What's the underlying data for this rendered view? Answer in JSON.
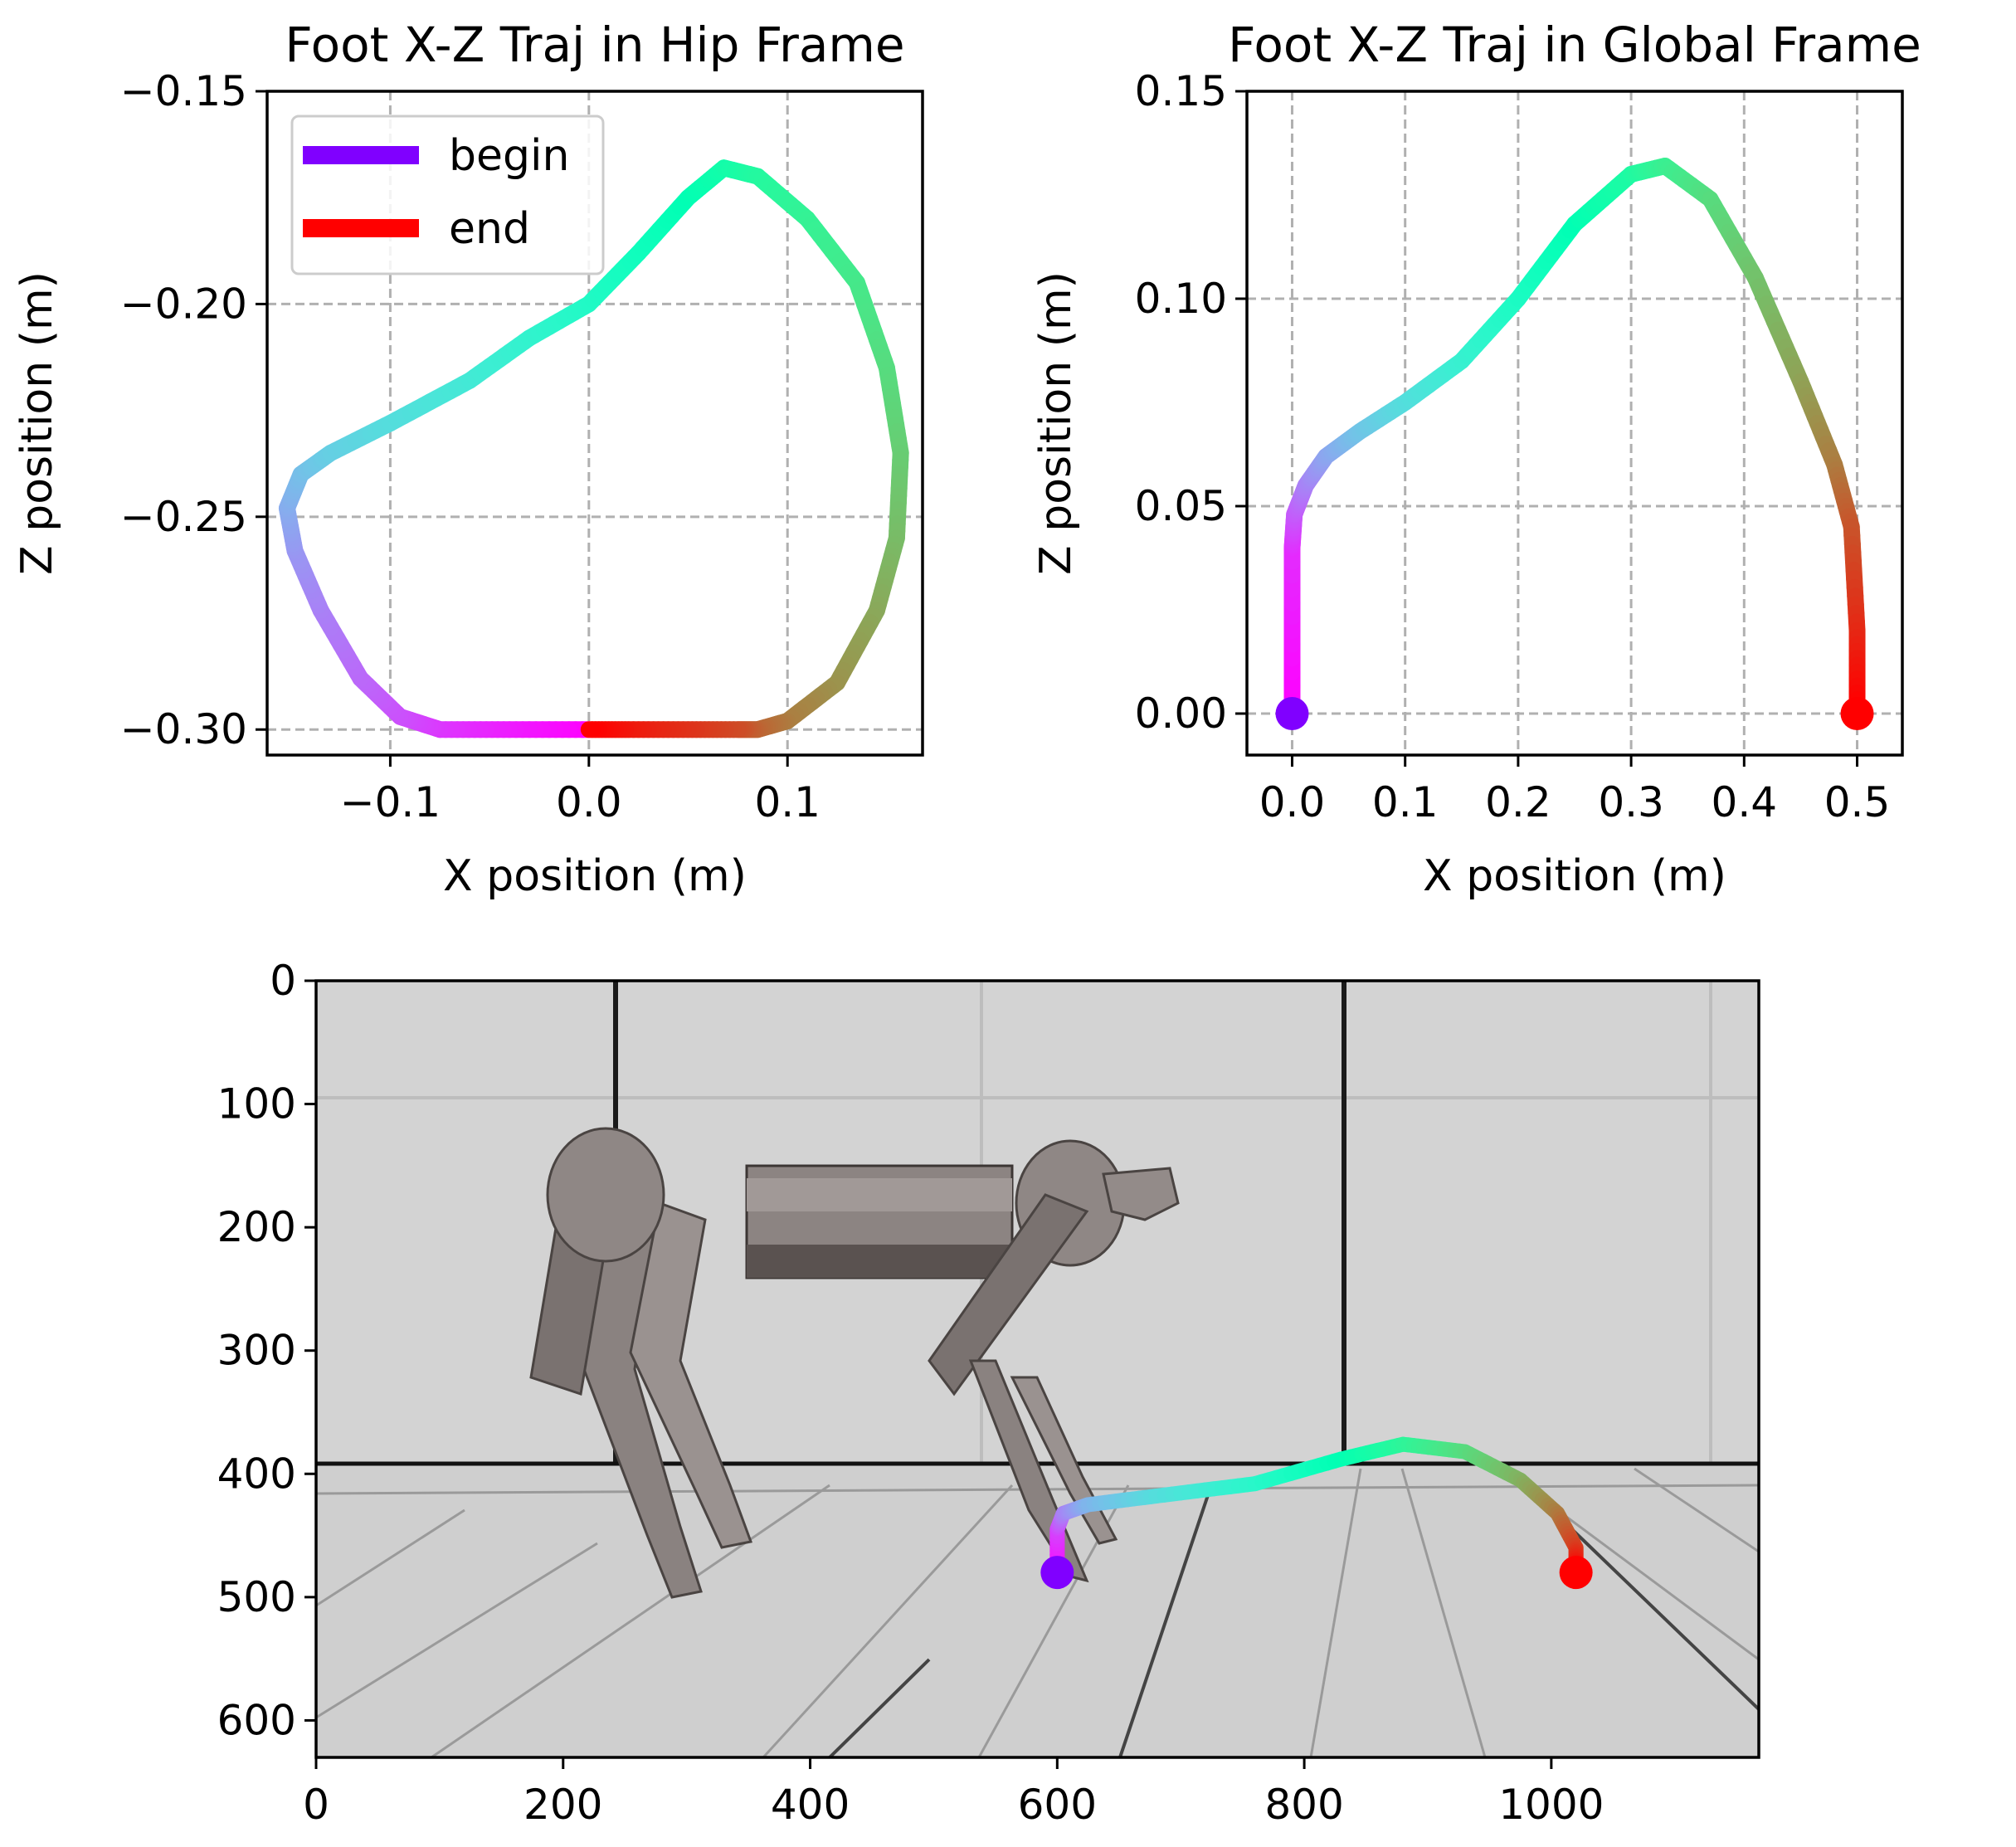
{
  "chart_data": [
    {
      "type": "line",
      "title": "Foot X-Z Traj in Hip Frame",
      "xlabel": "X position (m)",
      "ylabel": "Z position (m)",
      "xlim": [
        -0.162,
        0.168
      ],
      "ylim": [
        -0.306,
        -0.15
      ],
      "xticks": [
        -0.1,
        0.0,
        0.1
      ],
      "xtick_labels": [
        "−0.1",
        "0.0",
        "0.1"
      ],
      "yticks": [
        -0.15,
        -0.2,
        -0.25,
        -0.3
      ],
      "ytick_labels": [
        "−0.15",
        "−0.20",
        "−0.25",
        "−0.30"
      ],
      "grid": true,
      "colormap": "rainbow",
      "legend": {
        "location": "upper-left",
        "entries": [
          {
            "label": "begin",
            "color": "#8000ff"
          },
          {
            "label": "end",
            "color": "#ff0000"
          }
        ]
      },
      "series": [
        {
          "x": [
            0.0,
            -0.04,
            -0.075,
            -0.095,
            -0.115,
            -0.135,
            -0.148,
            -0.152,
            -0.145,
            -0.13,
            -0.1,
            -0.06,
            -0.03,
            0.0,
            0.025,
            0.05,
            0.068,
            0.085,
            0.11,
            0.135,
            0.15,
            0.157,
            0.155,
            0.145,
            0.125,
            0.1,
            0.085,
            0.075,
            0.05,
            0.02,
            0.0
          ],
          "y": [
            -0.3,
            -0.3,
            -0.3,
            -0.297,
            -0.288,
            -0.272,
            -0.258,
            -0.248,
            -0.24,
            -0.235,
            -0.228,
            -0.218,
            -0.208,
            -0.2,
            -0.188,
            -0.175,
            -0.168,
            -0.17,
            -0.18,
            -0.195,
            -0.215,
            -0.235,
            -0.255,
            -0.272,
            -0.289,
            -0.298,
            -0.3,
            -0.3,
            -0.3,
            -0.3,
            -0.3
          ]
        }
      ]
    },
    {
      "type": "line",
      "title": "Foot X-Z Traj in Global Frame",
      "xlabel": "X position (m)",
      "ylabel": "Z position (m)",
      "xlim": [
        -0.04,
        0.54
      ],
      "ylim": [
        -0.01,
        0.15
      ],
      "xticks": [
        0.0,
        0.1,
        0.2,
        0.3,
        0.4,
        0.5
      ],
      "xtick_labels": [
        "0.0",
        "0.1",
        "0.2",
        "0.3",
        "0.4",
        "0.5"
      ],
      "yticks": [
        0.0,
        0.05,
        0.1,
        0.15
      ],
      "ytick_labels": [
        "0.00",
        "0.05",
        "0.10",
        "0.15"
      ],
      "grid": true,
      "colormap": "rainbow",
      "series": [
        {
          "x": [
            0.0,
            0.0,
            0.002,
            0.012,
            0.03,
            0.06,
            0.1,
            0.15,
            0.2,
            0.25,
            0.3,
            0.33,
            0.37,
            0.41,
            0.45,
            0.48,
            0.495,
            0.5,
            0.5
          ],
          "y": [
            0.0,
            0.04,
            0.048,
            0.055,
            0.062,
            0.068,
            0.075,
            0.085,
            0.1,
            0.118,
            0.13,
            0.132,
            0.124,
            0.105,
            0.08,
            0.06,
            0.045,
            0.02,
            0.0
          ]
        }
      ],
      "markers": [
        {
          "name": "begin",
          "x": 0.0,
          "y": 0.0,
          "color": "#8000ff"
        },
        {
          "name": "end",
          "x": 0.5,
          "y": 0.0,
          "color": "#ff0000"
        }
      ]
    },
    {
      "type": "image",
      "xlim": [
        0,
        1168
      ],
      "ylim": [
        630,
        0
      ],
      "xticks": [
        0,
        200,
        400,
        600,
        800,
        1000
      ],
      "xtick_labels": [
        "0",
        "200",
        "400",
        "600",
        "800",
        "1000"
      ],
      "yticks": [
        0,
        100,
        200,
        300,
        400,
        500,
        600
      ],
      "ytick_labels": [
        "0",
        "100",
        "200",
        "300",
        "400",
        "500",
        "600"
      ],
      "image_description": "simulated quadruped robot walking on a gridded floor",
      "overlay": {
        "colormap": "rainbow",
        "x": [
          600,
          600,
          605,
          625,
          680,
          760,
          830,
          880,
          930,
          975,
          1005,
          1020,
          1020
        ],
        "y": [
          480,
          445,
          432,
          425,
          418,
          408,
          388,
          376,
          382,
          405,
          432,
          460,
          480
        ]
      },
      "markers": [
        {
          "name": "begin",
          "x": 600,
          "y": 480,
          "color": "#8000ff"
        },
        {
          "name": "end",
          "x": 1020,
          "y": 480,
          "color": "#ff0000"
        }
      ]
    }
  ]
}
